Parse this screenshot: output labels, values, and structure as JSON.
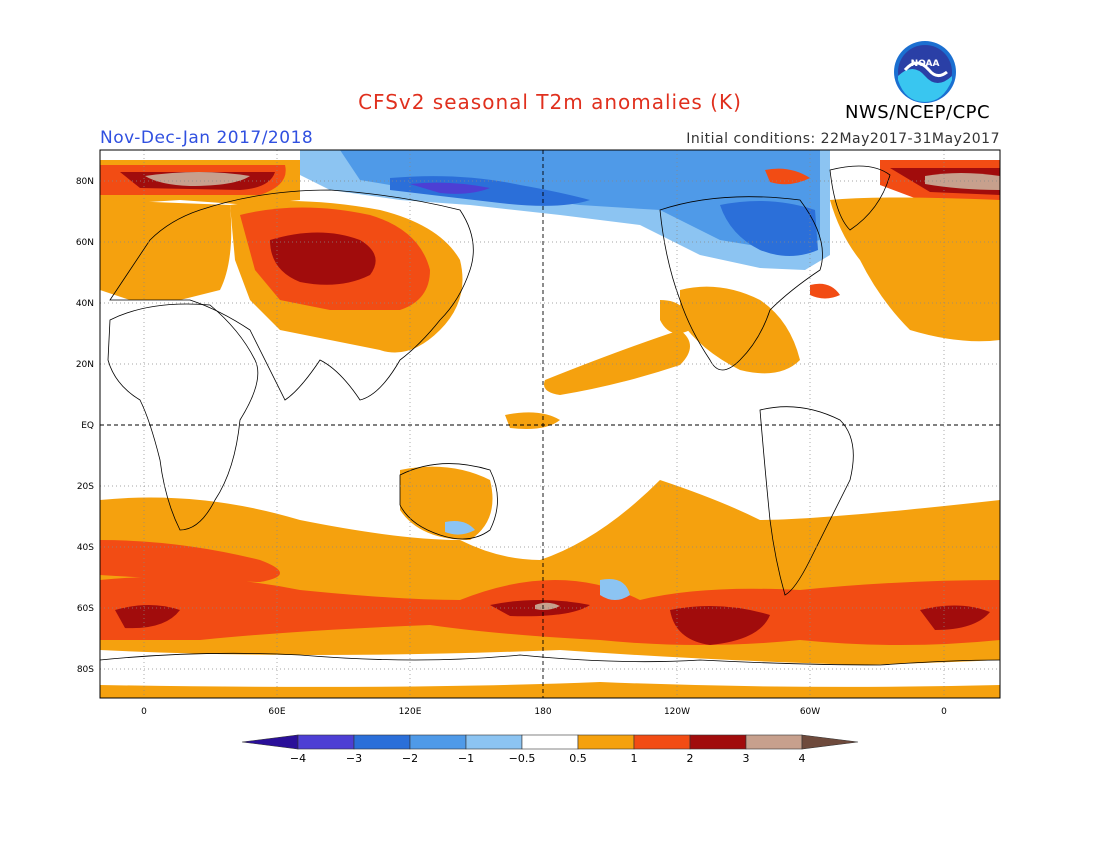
{
  "header": {
    "title": "CFSv2 seasonal T2m anomalies (K)",
    "season": "Nov-Dec-Jan 2017/2018",
    "initial_conditions": "Initial conditions: 22May2017-31May2017",
    "agency": "NWS/NCEP/CPC",
    "logo_text": "NOAA"
  },
  "axes": {
    "lat_labels": [
      "80N",
      "60N",
      "40N",
      "20N",
      "EQ",
      "20S",
      "40S",
      "60S",
      "80S"
    ],
    "lon_labels": [
      "0",
      "60E",
      "120E",
      "180",
      "120W",
      "60W",
      "0"
    ]
  },
  "colorbar": {
    "labels": [
      "-4",
      "-3",
      "-2",
      "-1",
      "-0.5",
      "0.5",
      "1",
      "2",
      "3",
      "4"
    ],
    "colors": [
      "#2a0f99",
      "#4d3fd4",
      "#2b6fd9",
      "#4f9ae8",
      "#8cc4f2",
      "#ffffff",
      "#f5a10e",
      "#f24c14",
      "#a10c0c",
      "#c7a08d",
      "#6e4a3c"
    ]
  },
  "colors": {
    "title": "#e0301e",
    "season": "#3050e0",
    "warm_weak": "#f5a10e",
    "warm": "#f24c14",
    "warm_strong": "#a10c0c",
    "warm_extreme": "#c7a08d",
    "cold_weak": "#8cc4f2",
    "cold": "#4f9ae8",
    "cold_strong": "#2b6fd9",
    "cold_extreme": "#4d3fd4"
  }
}
